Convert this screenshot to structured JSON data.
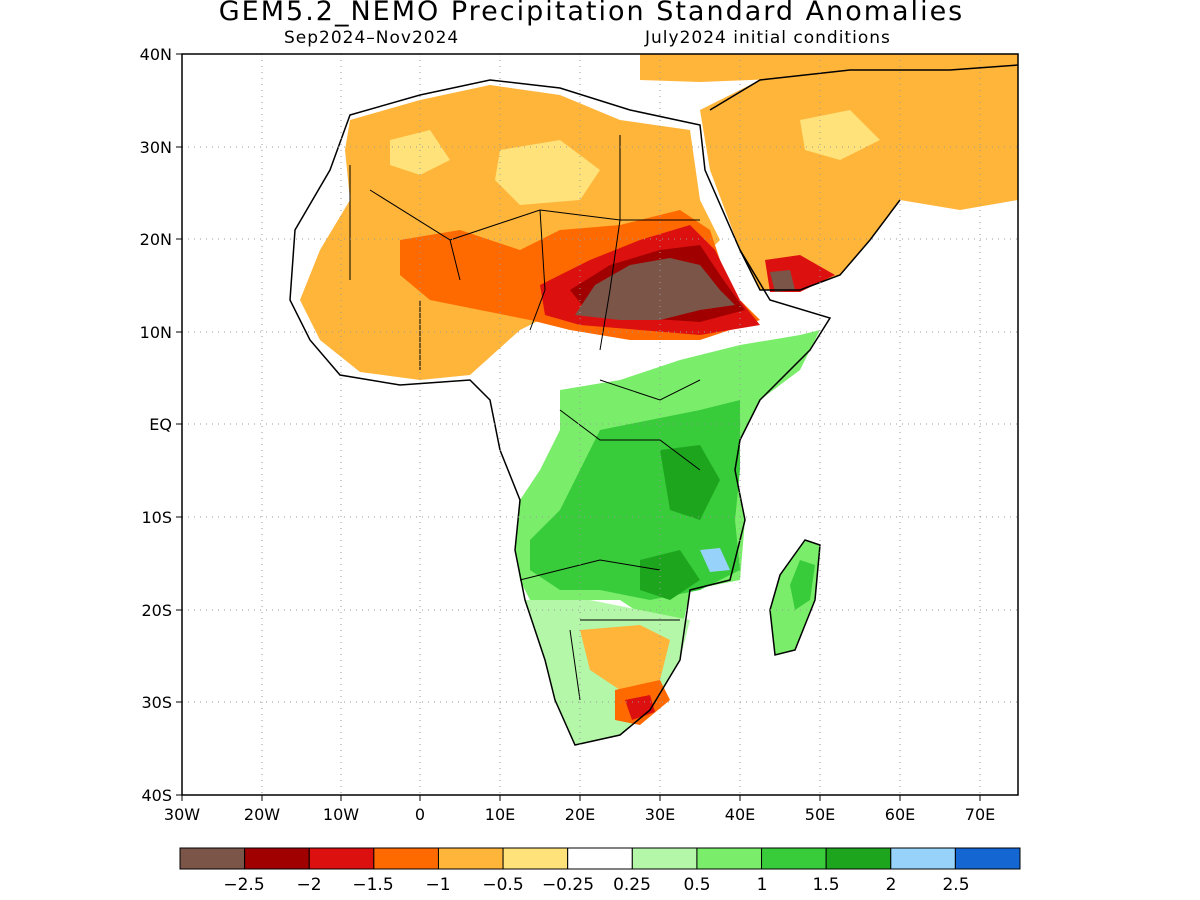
{
  "title": "GEM5.2_NEMO Precipitation Standard Anomalies",
  "period": "Sep2024–Nov2024",
  "init": "July2024 initial conditions",
  "lat_ticks": [
    "40N",
    "30N",
    "20N",
    "10N",
    "EQ",
    "10S",
    "20S",
    "30S",
    "40S"
  ],
  "lon_ticks": [
    "30W",
    "20W",
    "10W",
    "0",
    "10E",
    "20E",
    "30E",
    "40E",
    "50E",
    "60E",
    "70E"
  ],
  "colorbar": {
    "colors": [
      "#7a5548",
      "#a10000",
      "#dd1010",
      "#ff6a00",
      "#ffb43a",
      "#ffe27a",
      "#ffffff",
      "#b4f7a8",
      "#7aee6a",
      "#38cb3a",
      "#1ea51e",
      "#96d2fa",
      "#1466d2"
    ],
    "labels": [
      "−2.5",
      "−2",
      "−1.5",
      "−1",
      "−0.5",
      "−0.25",
      "0.25",
      "0.5",
      "1",
      "1.5",
      "2",
      "2.5"
    ]
  }
}
